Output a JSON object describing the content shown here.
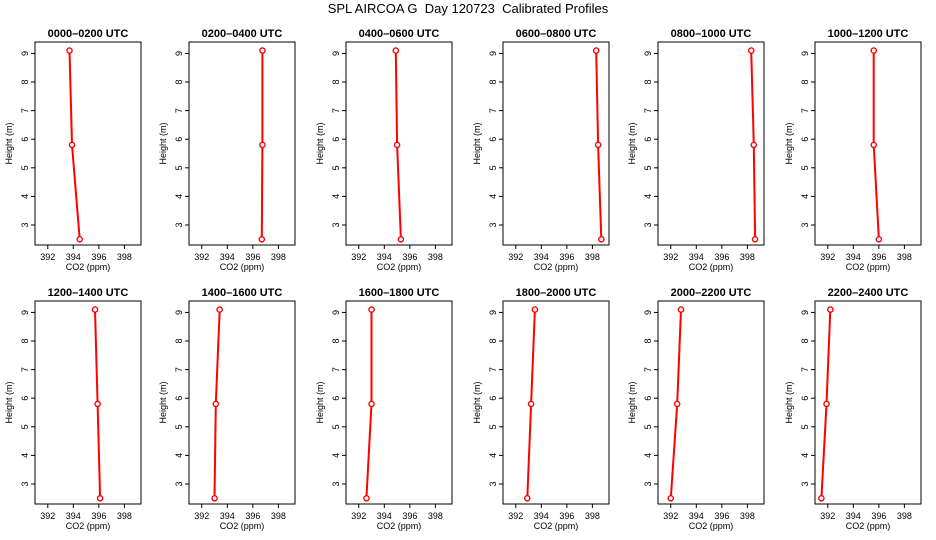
{
  "title": "SPL AIRCOA G  Day 120723  Calibrated Profiles",
  "chart_data": [
    {
      "type": "line",
      "title": "0000–0200 UTC",
      "xlabel": "CO2 (ppm)",
      "ylabel": "Height (m)",
      "xlim": [
        391,
        399.3
      ],
      "ylim": [
        2.3,
        9.4
      ],
      "x_ticks": [
        "392",
        "394",
        "396",
        "398"
      ],
      "y_ticks": [
        "3",
        "4",
        "5",
        "6",
        "7",
        "8",
        "9"
      ],
      "grid": false,
      "color": "#ff0000",
      "series": [
        {
          "x": [
            394.5,
            393.9,
            393.7
          ],
          "y": [
            2.5,
            5.8,
            9.1
          ]
        }
      ]
    },
    {
      "type": "line",
      "title": "0200–0400 UTC",
      "xlabel": "CO2 (ppm)",
      "ylabel": "Height (m)",
      "xlim": [
        391,
        399.3
      ],
      "ylim": [
        2.3,
        9.4
      ],
      "x_ticks": [
        "392",
        "394",
        "396",
        "398"
      ],
      "y_ticks": [
        "3",
        "4",
        "5",
        "6",
        "7",
        "8",
        "9"
      ],
      "grid": false,
      "color": "#ff0000",
      "series": [
        {
          "x": [
            396.7,
            396.75,
            396.75
          ],
          "y": [
            2.5,
            5.8,
            9.1
          ]
        }
      ]
    },
    {
      "type": "line",
      "title": "0400–0600 UTC",
      "xlabel": "CO2 (ppm)",
      "ylabel": "Height (m)",
      "xlim": [
        391,
        399.3
      ],
      "ylim": [
        2.3,
        9.4
      ],
      "x_ticks": [
        "392",
        "394",
        "396",
        "398"
      ],
      "y_ticks": [
        "3",
        "4",
        "5",
        "6",
        "7",
        "8",
        "9"
      ],
      "grid": false,
      "color": "#ff0000",
      "series": [
        {
          "x": [
            395.3,
            395.0,
            394.9
          ],
          "y": [
            2.5,
            5.8,
            9.1
          ]
        }
      ]
    },
    {
      "type": "line",
      "title": "0600–0800 UTC",
      "xlabel": "CO2 (ppm)",
      "ylabel": "Height (m)",
      "xlim": [
        391,
        399.3
      ],
      "ylim": [
        2.3,
        9.4
      ],
      "x_ticks": [
        "392",
        "394",
        "396",
        "398"
      ],
      "y_ticks": [
        "3",
        "4",
        "5",
        "6",
        "7",
        "8",
        "9"
      ],
      "grid": false,
      "color": "#ff0000",
      "series": [
        {
          "x": [
            398.7,
            398.45,
            398.3
          ],
          "y": [
            2.5,
            5.8,
            9.1
          ]
        }
      ]
    },
    {
      "type": "line",
      "title": "0800–1000 UTC",
      "xlabel": "CO2 (ppm)",
      "ylabel": "Height (m)",
      "xlim": [
        391,
        399.3
      ],
      "ylim": [
        2.3,
        9.4
      ],
      "x_ticks": [
        "392",
        "394",
        "396",
        "398"
      ],
      "y_ticks": [
        "3",
        "4",
        "5",
        "6",
        "7",
        "8",
        "9"
      ],
      "grid": false,
      "color": "#ff0000",
      "series": [
        {
          "x": [
            398.6,
            398.5,
            398.3
          ],
          "y": [
            2.5,
            5.8,
            9.1
          ]
        }
      ]
    },
    {
      "type": "line",
      "title": "1000–1200 UTC",
      "xlabel": "CO2 (ppm)",
      "ylabel": "Height (m)",
      "xlim": [
        391,
        399.3
      ],
      "ylim": [
        2.3,
        9.4
      ],
      "x_ticks": [
        "392",
        "394",
        "396",
        "398"
      ],
      "y_ticks": [
        "3",
        "4",
        "5",
        "6",
        "7",
        "8",
        "9"
      ],
      "grid": false,
      "color": "#ff0000",
      "series": [
        {
          "x": [
            396.0,
            395.6,
            395.6
          ],
          "y": [
            2.5,
            5.8,
            9.1
          ]
        }
      ]
    },
    {
      "type": "line",
      "title": "1200–1400 UTC",
      "xlabel": "CO2 (ppm)",
      "ylabel": "Height (m)",
      "xlim": [
        391,
        399.3
      ],
      "ylim": [
        2.3,
        9.4
      ],
      "x_ticks": [
        "392",
        "394",
        "396",
        "398"
      ],
      "y_ticks": [
        "3",
        "4",
        "5",
        "6",
        "7",
        "8",
        "9"
      ],
      "grid": false,
      "color": "#ff0000",
      "series": [
        {
          "x": [
            396.1,
            395.9,
            395.7
          ],
          "y": [
            2.5,
            5.8,
            9.1
          ]
        }
      ]
    },
    {
      "type": "line",
      "title": "1400–1600 UTC",
      "xlabel": "CO2 (ppm)",
      "ylabel": "Height (m)",
      "xlim": [
        391,
        399.3
      ],
      "ylim": [
        2.3,
        9.4
      ],
      "x_ticks": [
        "392",
        "394",
        "396",
        "398"
      ],
      "y_ticks": [
        "3",
        "4",
        "5",
        "6",
        "7",
        "8",
        "9"
      ],
      "grid": false,
      "color": "#ff0000",
      "series": [
        {
          "x": [
            393.0,
            393.1,
            393.4
          ],
          "y": [
            2.5,
            5.8,
            9.1
          ]
        }
      ]
    },
    {
      "type": "line",
      "title": "1600–1800 UTC",
      "xlabel": "CO2 (ppm)",
      "ylabel": "Height (m)",
      "xlim": [
        391,
        399.3
      ],
      "ylim": [
        2.3,
        9.4
      ],
      "x_ticks": [
        "392",
        "394",
        "396",
        "398"
      ],
      "y_ticks": [
        "3",
        "4",
        "5",
        "6",
        "7",
        "8",
        "9"
      ],
      "grid": false,
      "color": "#ff0000",
      "series": [
        {
          "x": [
            392.6,
            393.0,
            393.0
          ],
          "y": [
            2.5,
            5.8,
            9.1
          ]
        }
      ]
    },
    {
      "type": "line",
      "title": "1800–2000 UTC",
      "xlabel": "CO2 (ppm)",
      "ylabel": "Height (m)",
      "xlim": [
        391,
        399.3
      ],
      "ylim": [
        2.3,
        9.4
      ],
      "x_ticks": [
        "392",
        "394",
        "396",
        "398"
      ],
      "y_ticks": [
        "3",
        "4",
        "5",
        "6",
        "7",
        "8",
        "9"
      ],
      "grid": false,
      "color": "#ff0000",
      "series": [
        {
          "x": [
            392.9,
            393.2,
            393.5
          ],
          "y": [
            2.5,
            5.8,
            9.1
          ]
        }
      ]
    },
    {
      "type": "line",
      "title": "2000–2200 UTC",
      "xlabel": "CO2 (ppm)",
      "ylabel": "Height (m)",
      "xlim": [
        391,
        399.3
      ],
      "ylim": [
        2.3,
        9.4
      ],
      "x_ticks": [
        "392",
        "394",
        "396",
        "398"
      ],
      "y_ticks": [
        "3",
        "4",
        "5",
        "6",
        "7",
        "8",
        "9"
      ],
      "grid": false,
      "color": "#ff0000",
      "series": [
        {
          "x": [
            392.0,
            392.5,
            392.8
          ],
          "y": [
            2.5,
            5.8,
            9.1
          ]
        }
      ]
    },
    {
      "type": "line",
      "title": "2200–2400 UTC",
      "xlabel": "CO2 (ppm)",
      "ylabel": "Height (m)",
      "xlim": [
        391,
        399.3
      ],
      "ylim": [
        2.3,
        9.4
      ],
      "x_ticks": [
        "392",
        "394",
        "396",
        "398"
      ],
      "y_ticks": [
        "3",
        "4",
        "5",
        "6",
        "7",
        "8",
        "9"
      ],
      "grid": false,
      "color": "#ff0000",
      "series": [
        {
          "x": [
            391.5,
            391.9,
            392.2
          ],
          "y": [
            2.5,
            5.8,
            9.1
          ]
        }
      ]
    }
  ]
}
